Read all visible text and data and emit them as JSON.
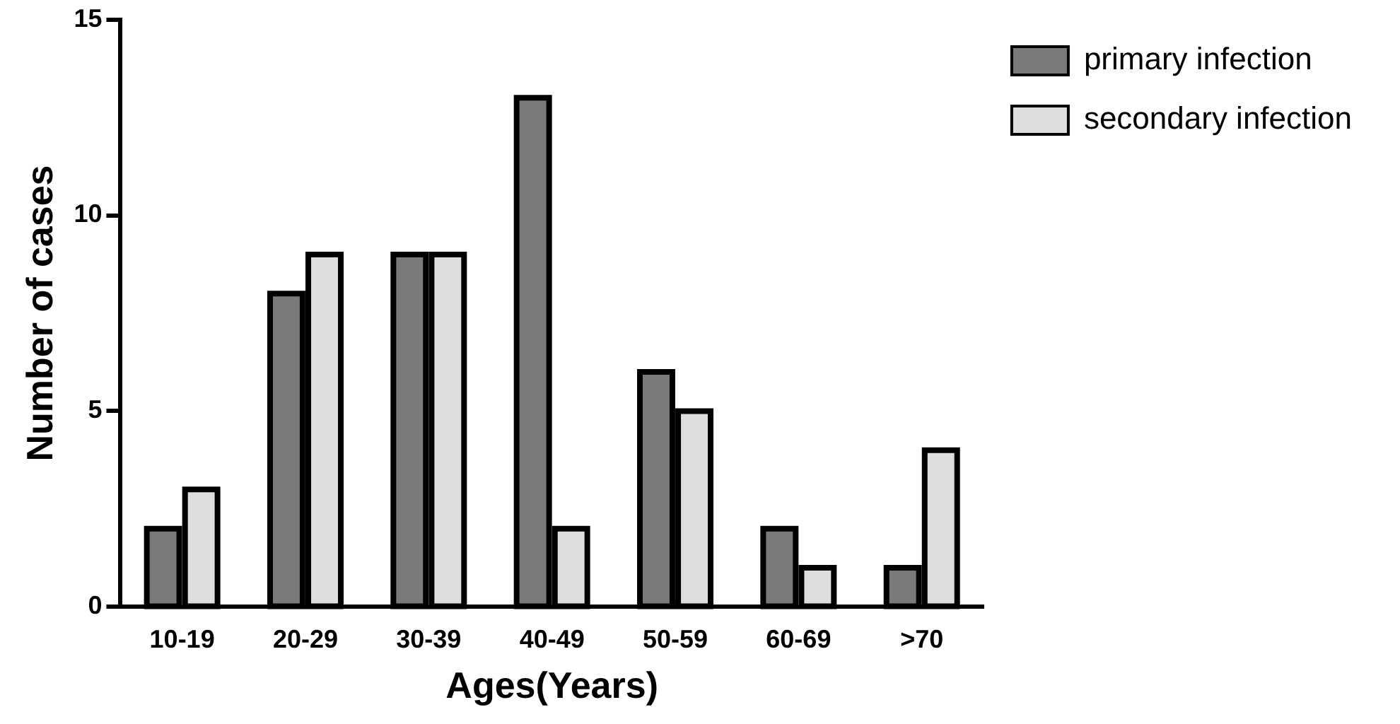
{
  "chart_data": {
    "type": "bar",
    "xlabel": "Ages(Years)",
    "ylabel": "Number of cases",
    "categories": [
      "10-19",
      "20-29",
      "30-39",
      "40-49",
      "50-59",
      "60-69",
      ">70"
    ],
    "series": [
      {
        "name": "primary infection",
        "color": "#7a7a7a",
        "values": [
          2,
          8,
          9,
          13,
          6,
          2,
          1
        ]
      },
      {
        "name": "secondary infection",
        "color": "#dedede",
        "values": [
          3,
          9,
          9,
          2,
          5,
          1,
          4
        ]
      }
    ],
    "ylim": [
      0,
      15
    ],
    "yticks": [
      0,
      5,
      10,
      15
    ],
    "grid": false,
    "legend": "top right"
  }
}
